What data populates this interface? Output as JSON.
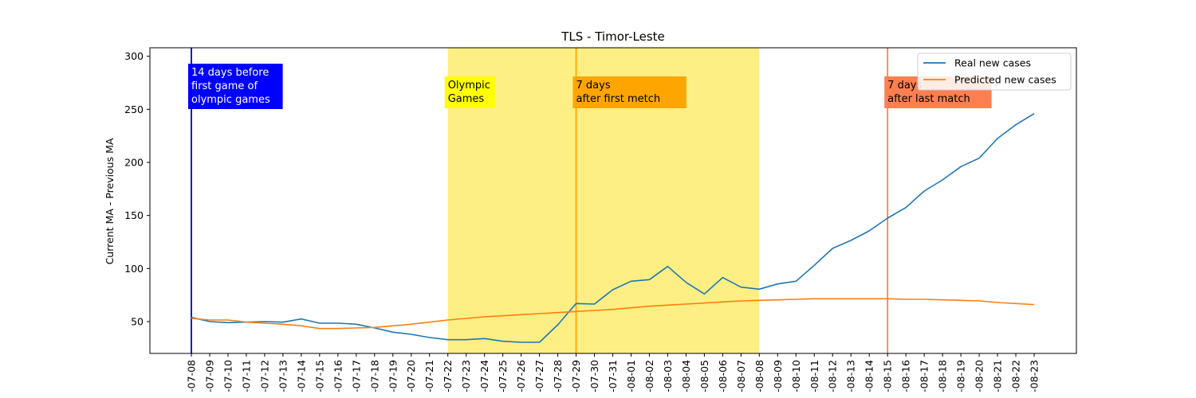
{
  "chart_data": {
    "type": "line",
    "title": "TLS - Timor-Leste",
    "xlabel": "",
    "ylabel": "Current MA - Previous MA",
    "x": [
      "2021-07-08",
      "2021-07-09",
      "2021-07-10",
      "2021-07-11",
      "2021-07-12",
      "2021-07-13",
      "2021-07-14",
      "2021-07-15",
      "2021-07-16",
      "2021-07-17",
      "2021-07-18",
      "2021-07-19",
      "2021-07-20",
      "2021-07-21",
      "2021-07-22",
      "2021-07-23",
      "2021-07-24",
      "2021-07-25",
      "2021-07-26",
      "2021-07-27",
      "2021-07-28",
      "2021-07-29",
      "2021-07-30",
      "2021-07-31",
      "2021-08-01",
      "2021-08-02",
      "2021-08-03",
      "2021-08-04",
      "2021-08-05",
      "2021-08-06",
      "2021-08-07",
      "2021-08-08",
      "2021-08-09",
      "2021-08-10",
      "2021-08-11",
      "2021-08-12",
      "2021-08-13",
      "2021-08-14",
      "2021-08-15",
      "2021-08-16",
      "2021-08-17",
      "2021-08-18",
      "2021-08-19",
      "2021-08-20",
      "2021-08-21",
      "2021-08-22",
      "2021-08-23"
    ],
    "x_tick_labels": [
      "-07-08",
      "-07-09",
      "-07-10",
      "-07-11",
      "-07-12",
      "-07-13",
      "-07-14",
      "-07-15",
      "-07-16",
      "-07-17",
      "-07-18",
      "-07-19",
      "-07-20",
      "-07-21",
      "-07-22",
      "-07-23",
      "-07-24",
      "-07-25",
      "-07-26",
      "-07-27",
      "-07-28",
      "-07-29",
      "-07-30",
      "-07-31",
      "-08-01",
      "-08-02",
      "-08-03",
      "-08-04",
      "-08-05",
      "-08-06",
      "-08-07",
      "-08-08",
      "-08-09",
      "-08-10",
      "-08-11",
      "-08-12",
      "-08-13",
      "-08-14",
      "-08-15",
      "-08-16",
      "-08-17",
      "-08-18",
      "-08-19",
      "-08-20",
      "-08-21",
      "-08-22",
      "-08-23"
    ],
    "ylim": [
      20,
      308
    ],
    "y_ticks": [
      50,
      100,
      150,
      200,
      250,
      300
    ],
    "grid": false,
    "legend_position": "top-right",
    "series": [
      {
        "name": "Real new cases",
        "color": "#1f77b4",
        "values": [
          54,
          50,
          49,
          49.5,
          50,
          49.5,
          52.5,
          48.5,
          48.5,
          47.5,
          44,
          40,
          38,
          35,
          33,
          33,
          34,
          31.5,
          30.5,
          30.5,
          47,
          67,
          66.5,
          80,
          88,
          89.5,
          102,
          87,
          76,
          91.5,
          82.5,
          80.5,
          85.5,
          88,
          103,
          119,
          126.5,
          135.5,
          147.5,
          157.5,
          173,
          183.5,
          196,
          204,
          222.5,
          235.5,
          246
        ]
      },
      {
        "name": "Predicted new cases",
        "color": "#ff7f0e",
        "values": [
          53,
          51.5,
          51.5,
          49.5,
          48.5,
          47.5,
          46,
          43.5,
          43.5,
          44,
          44.5,
          46,
          47.5,
          49.5,
          51.5,
          53,
          54.5,
          55.5,
          56.5,
          57.5,
          58.5,
          59.5,
          60.5,
          61.5,
          63,
          64.5,
          65.5,
          66.5,
          67.5,
          68.5,
          69.5,
          70,
          70.5,
          71,
          71.5,
          71.5,
          71.5,
          71.5,
          71.5,
          71,
          71,
          70.5,
          70,
          69.5,
          68,
          67,
          66
        ]
      }
    ],
    "shaded_regions": [
      {
        "from": "2021-07-22",
        "to": "2021-08-08",
        "color": "#fdef84"
      }
    ],
    "vertical_lines": [
      {
        "x": "2021-07-08",
        "color": "#0000cc"
      },
      {
        "x": "2021-07-29",
        "color": "#ffa500"
      },
      {
        "x": "2021-08-15",
        "color": "#ff7f50"
      }
    ],
    "annotations": [
      {
        "x": "2021-07-08",
        "y": 290,
        "lines": [
          "14 days before",
          "first game of",
          "olympic games"
        ],
        "bg": "#0000ff",
        "fg": "#ffffff"
      },
      {
        "x": "2021-07-22",
        "y": 278,
        "lines": [
          "Olympic",
          "Games"
        ],
        "bg": "#ffff00",
        "fg": "#000000"
      },
      {
        "x": "2021-07-29",
        "y": 278,
        "lines": [
          "7 days",
          "after first metch"
        ],
        "bg": "#ffa500",
        "fg": "#000000"
      },
      {
        "x": "2021-08-15",
        "y": 278,
        "lines": [
          "7 days",
          "after last match"
        ],
        "bg": "#ff7f50",
        "fg": "#000000"
      }
    ]
  }
}
